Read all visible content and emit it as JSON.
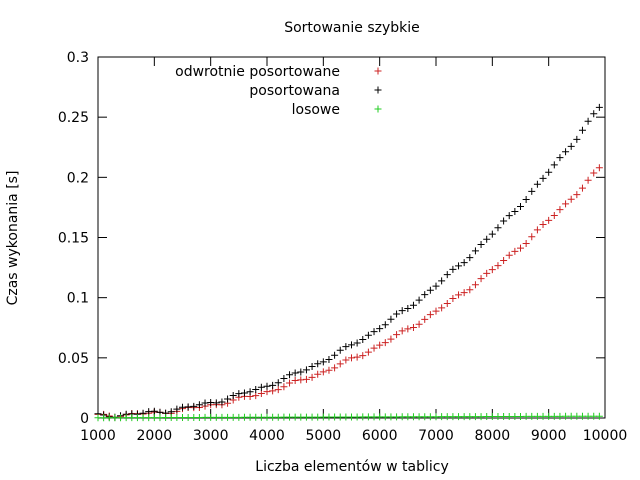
{
  "chart_data": {
    "type": "scatter",
    "title": "Sortowanie szybkie",
    "xlabel": "Liczba elementów w tablicy",
    "ylabel": "Czas wykonania [s]",
    "xlim": [
      1000,
      10000
    ],
    "ylim": [
      0,
      0.3
    ],
    "xticks": [
      "1000",
      "2000",
      "3000",
      "4000",
      "5000",
      "6000",
      "7000",
      "8000",
      "9000",
      "10000"
    ],
    "yticks": [
      "0",
      "0.05",
      "0.1",
      "0.15",
      "0.2",
      "0.25",
      "0.3"
    ],
    "grid": false,
    "legend_position": "top-left",
    "marker": "+",
    "x_start": 1000,
    "x_step": 100,
    "series": [
      {
        "name": "odwrotnie posortowane",
        "color": "#cc2222",
        "curve": {
          "type": "quadratic_from_origin",
          "x0": 1000,
          "y0": 0.002,
          "x1": 9900,
          "y1": 0.207
        }
      },
      {
        "name": "posortowana",
        "color": "#000000",
        "curve": {
          "type": "quadratic_from_origin",
          "x0": 1000,
          "y0": 0.002,
          "x1": 9900,
          "y1": 0.258
        }
      },
      {
        "name": "losowe",
        "color": "#22cc22",
        "curve": {
          "type": "linear",
          "x0": 1000,
          "y0": 0.0002,
          "x1": 9900,
          "y1": 0.0015
        }
      }
    ]
  }
}
